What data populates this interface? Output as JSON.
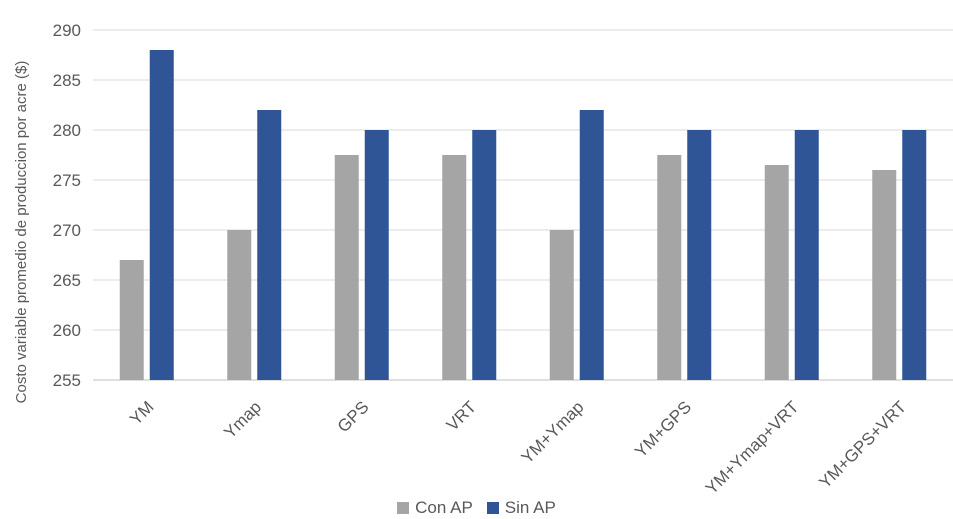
{
  "chart_data": {
    "type": "bar",
    "categories": [
      "YM",
      "Ymap",
      "GPS",
      "VRT",
      "YM+Ymap",
      "YM+GPS",
      "YM+Ymap+VRT",
      "YM+GPS+VRT"
    ],
    "series": [
      {
        "name": "Con AP",
        "color": "#a5a5a5",
        "values": [
          267,
          270,
          277.5,
          277.5,
          270,
          277.5,
          276.5,
          276
        ]
      },
      {
        "name": "Sin AP",
        "color": "#2f5597",
        "values": [
          288,
          282,
          280,
          280,
          282,
          280,
          280,
          280
        ]
      }
    ],
    "ylabel": "Costo variable promedio de produccion por acre ($)",
    "ylim": [
      255,
      290
    ],
    "yticks": [
      255,
      260,
      265,
      270,
      275,
      280,
      285,
      290
    ],
    "grid": true,
    "legend_position": "bottom"
  }
}
